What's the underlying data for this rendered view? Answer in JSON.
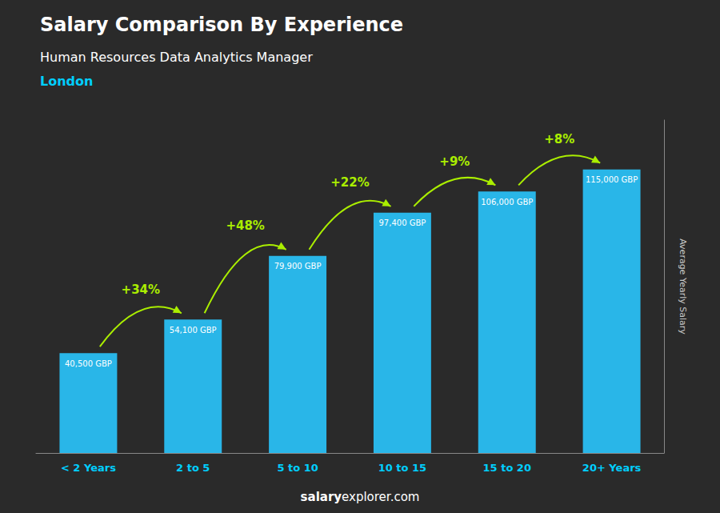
{
  "chart_data": {
    "type": "bar",
    "title": "Salary Comparison By Experience",
    "subtitle": [
      "Human Resources Data Analytics Manager",
      "London"
    ],
    "ylabel": "Average Yearly Salary",
    "categories": [
      "< 2 Years",
      "2 to 5",
      "5 to 10",
      "10 to 15",
      "15 to 20",
      "20+ Years"
    ],
    "values": [
      40500,
      54100,
      79900,
      97400,
      106000,
      115000
    ],
    "value_labels": [
      "40,500 GBP",
      "54,100 GBP",
      "79,900 GBP",
      "97,400 GBP",
      "106,000 GBP",
      "115,000 GBP"
    ],
    "data_labels": true,
    "annotations": [
      "+34%",
      "+48%",
      "+22%",
      "+9%",
      "+8%"
    ],
    "footer": [
      "salary",
      "explorer.com"
    ],
    "color": "#29b6e8",
    "ylim": [
      0,
      135000
    ],
    "tick_labels": "x",
    "grid": false
  }
}
